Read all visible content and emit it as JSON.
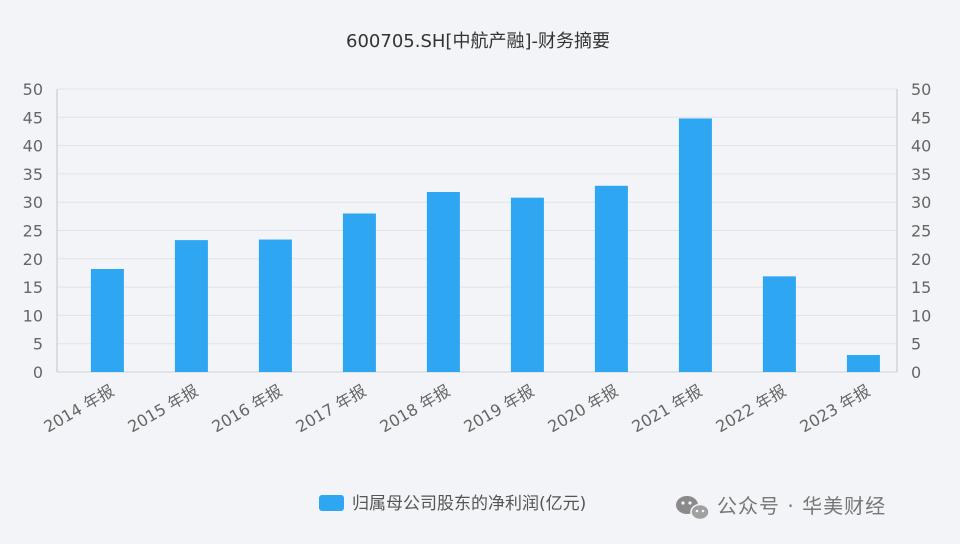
{
  "chart_data": {
    "type": "bar",
    "title": "600705.SH[中航产融]-财务摘要",
    "categories": [
      "2014 年报",
      "2015 年报",
      "2016 年报",
      "2017 年报",
      "2018 年报",
      "2019 年报",
      "2020 年报",
      "2021 年报",
      "2022 年报",
      "2023 年报"
    ],
    "series": [
      {
        "name": "归属母公司股东的净利润(亿元)",
        "values": [
          18.2,
          23.3,
          23.4,
          28.0,
          31.8,
          30.8,
          32.9,
          44.8,
          16.9,
          3.0
        ]
      }
    ],
    "ylim": [
      0,
      50
    ],
    "yticks": [
      0,
      5,
      10,
      15,
      20,
      25,
      30,
      35,
      40,
      45,
      50
    ],
    "y_axes": "left and right, mirrored",
    "grid": true,
    "legend_position": "bottom",
    "bar_color": "#2ea6f2"
  },
  "watermark": {
    "text": "公众号 · 华美财经",
    "icon": "wechat-icon"
  }
}
